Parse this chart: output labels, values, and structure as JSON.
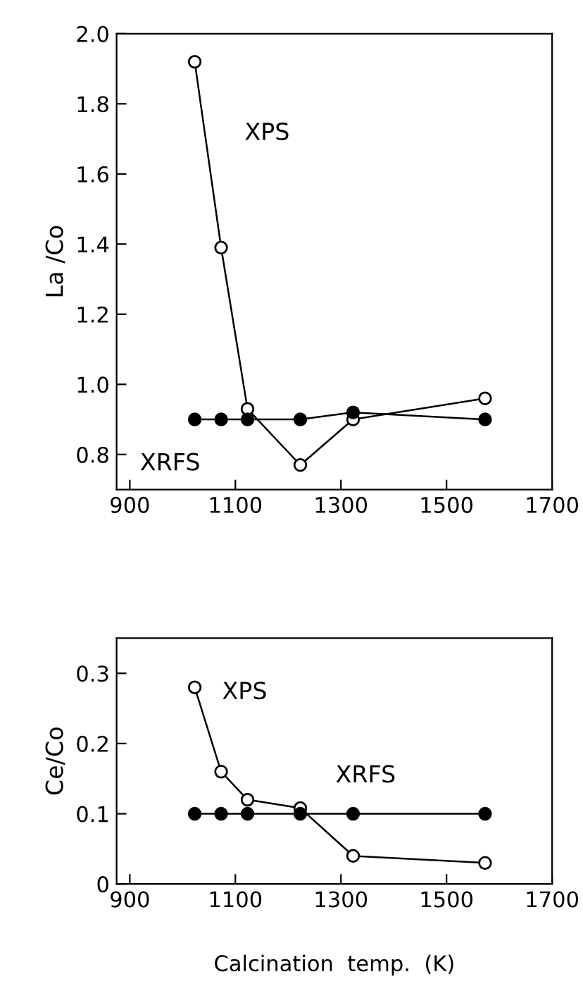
{
  "chart_data": [
    {
      "type": "line",
      "ylabel": "La /Co",
      "x": [
        1023,
        1073,
        1123,
        1223,
        1323,
        1573
      ],
      "xlim": [
        875,
        1700
      ],
      "xticks": [
        900,
        1100,
        1300,
        1500,
        1700
      ],
      "ylim": [
        0.7,
        2.0
      ],
      "yticks": [
        {
          "value": 0.8,
          "label": "0.8"
        },
        {
          "value": 1.0,
          "label": "1.0"
        },
        {
          "value": 1.2,
          "label": "1.2"
        },
        {
          "value": 1.4,
          "label": "1.4"
        },
        {
          "value": 1.6,
          "label": "1.6"
        },
        {
          "value": 1.8,
          "label": "1.8"
        },
        {
          "value": 2.0,
          "label": "2.0"
        }
      ],
      "marker": "circle",
      "grid": false,
      "legend": false,
      "series": [
        {
          "name": "XPS",
          "color": "#000000",
          "values": [
            1.92,
            1.39,
            0.93,
            0.77,
            0.9,
            0.96
          ]
        },
        {
          "name": "XRFS",
          "color": "#000000",
          "values": [
            0.9,
            0.9,
            0.9,
            0.9,
            0.92,
            0.9
          ]
        }
      ]
    },
    {
      "type": "line",
      "ylabel": "Ce/Co",
      "xlabel": "Calcination  temp.  (K)",
      "x": [
        1023,
        1073,
        1123,
        1223,
        1323,
        1573
      ],
      "xlim": [
        875,
        1700
      ],
      "xticks": [
        900,
        1100,
        1300,
        1500,
        1700
      ],
      "ylim": [
        0,
        0.35
      ],
      "yticks": [
        0,
        0.1,
        0.2,
        0.3
      ],
      "marker": "circle",
      "grid": false,
      "legend": false,
      "series": [
        {
          "name": "XPS",
          "color": "#000000",
          "values": [
            0.28,
            0.16,
            0.12,
            0.108,
            0.04,
            0.03
          ]
        },
        {
          "name": "XRFS",
          "color": "#000000",
          "values": [
            0.1,
            0.1,
            0.1,
            0.1,
            0.1,
            0.1
          ]
        }
      ]
    }
  ]
}
